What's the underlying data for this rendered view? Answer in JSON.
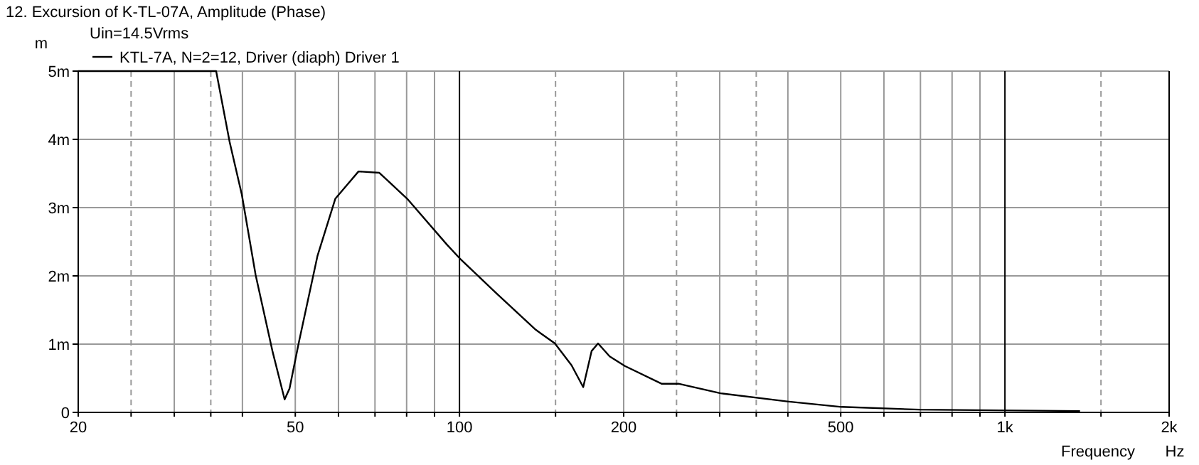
{
  "chart_data": {
    "type": "line",
    "title": "12. Excursion of K-TL-07A, Amplitude (Phase)",
    "subtitle": "Uin=14.5Vrms",
    "xlabel": "Frequency",
    "ylabel": "m",
    "annotations": [
      "Hz"
    ],
    "log": "x",
    "grid": true,
    "legend": "top left",
    "line_style": "solid",
    "xlim": [
      20,
      2000
    ],
    "ylim": [
      0,
      5
    ],
    "xticks": [
      20,
      {
        "value": 25,
        "label": null
      },
      {
        "value": 30,
        "label": null
      },
      {
        "value": 35,
        "label": null
      },
      {
        "value": 40,
        "label": null
      },
      50,
      {
        "value": 60,
        "label": null
      },
      {
        "value": 70,
        "label": null
      },
      {
        "value": 80,
        "label": null
      },
      {
        "value": 90,
        "label": null
      },
      100,
      {
        "value": 150,
        "label": null
      },
      200,
      {
        "value": 250,
        "label": null
      },
      {
        "value": 300,
        "label": null
      },
      {
        "value": 350,
        "label": null
      },
      {
        "value": 400,
        "label": null
      },
      500,
      {
        "value": 600,
        "label": null
      },
      {
        "value": 700,
        "label": null
      },
      {
        "value": 800,
        "label": null
      },
      {
        "value": 900,
        "label": null
      },
      {
        "value": 1000,
        "label": "1k"
      },
      {
        "value": 1500,
        "label": null
      },
      {
        "value": 2000,
        "label": "2k"
      }
    ],
    "yticks": [
      0,
      {
        "value": 1,
        "label": "1m"
      },
      {
        "value": 2,
        "label": "2m"
      },
      {
        "value": 3,
        "label": "3m"
      },
      {
        "value": 4,
        "label": "4m"
      },
      {
        "value": 5,
        "label": "5m"
      }
    ],
    "series": [
      {
        "name": "KTL-7A, N=2=12, Driver (diaph) Driver 1",
        "color": "#000000",
        "x": [
          20,
          35.8,
          37.9,
          39.9,
          42.3,
          45.4,
          47.8,
          48.8,
          50.8,
          54.9,
          59.2,
          65.3,
          71.3,
          80.2,
          94.8,
          100,
          117,
          138,
          149.6,
          160.5,
          168.6,
          174.7,
          179.5,
          188.5,
          201,
          234.6,
          252,
          301,
          399,
          502,
          698,
          1373
        ],
        "values": [
          5,
          5,
          3.96,
          3.19,
          2.01,
          0.9,
          0.19,
          0.35,
          1.04,
          2.29,
          3.13,
          3.53,
          3.51,
          3.13,
          2.46,
          2.26,
          1.74,
          1.21,
          1.01,
          0.69,
          0.37,
          0.9,
          1.01,
          0.82,
          0.68,
          0.42,
          0.42,
          0.28,
          0.16,
          0.08,
          0.04,
          0.02
        ]
      }
    ]
  }
}
